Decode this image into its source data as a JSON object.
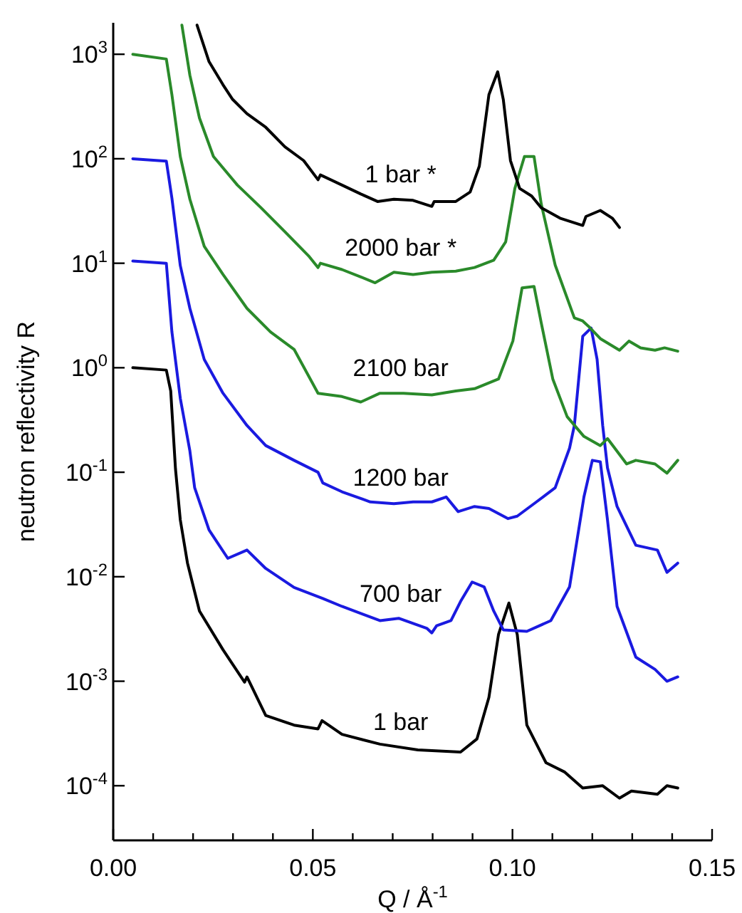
{
  "chart_data": {
    "type": "line",
    "xlabel": "Q / Å$^{-1}$",
    "ylabel": "neutron reflectivity R",
    "log": "y",
    "xlim": [
      0,
      0.15
    ],
    "ylim": [
      3e-05,
      2000
    ],
    "xticks": [
      {
        "value": 0,
        "label": "0.00"
      },
      {
        "value": 0.01,
        "label": null
      },
      {
        "value": 0.02,
        "label": null
      },
      {
        "value": 0.03,
        "label": null
      },
      {
        "value": 0.04,
        "label": null
      },
      {
        "value": 0.05,
        "label": "0.05"
      },
      {
        "value": 0.06,
        "label": null
      },
      {
        "value": 0.07,
        "label": null
      },
      {
        "value": 0.08,
        "label": null
      },
      {
        "value": 0.09,
        "label": null
      },
      {
        "value": 0.1,
        "label": "0.10"
      },
      {
        "value": 0.11,
        "label": null
      },
      {
        "value": 0.12,
        "label": null
      },
      {
        "value": 0.13,
        "label": null
      },
      {
        "value": 0.14,
        "label": null
      },
      {
        "value": 0.15,
        "label": "0.15"
      }
    ],
    "yticks": [
      {
        "value": 0.0001,
        "label": "10$^{-4}$"
      },
      {
        "value": 0.001,
        "label": "10$^{-3}$"
      },
      {
        "value": 0.01,
        "label": "10$^{-2}$"
      },
      {
        "value": 0.1,
        "label": "10$^{-1}$"
      },
      {
        "value": 1,
        "label": "10$^{0}$"
      },
      {
        "value": 10,
        "label": "10$^{1}$"
      },
      {
        "value": 100,
        "label": "10$^{2}$"
      },
      {
        "value": 1000,
        "label": "10$^{3}$"
      }
    ],
    "grid": false,
    "marker": "none",
    "line_style": "solid",
    "series": [
      {
        "name": "1 bar",
        "color": "#000000",
        "x": [
          0.0049,
          0.0133,
          0.0144,
          0.0156,
          0.0168,
          0.0186,
          0.0216,
          0.0275,
          0.0329,
          0.0335,
          0.0382,
          0.0453,
          0.0513,
          0.0523,
          0.0573,
          0.0668,
          0.0763,
          0.087,
          0.0911,
          0.0941,
          0.0965,
          0.0991,
          0.1012,
          0.1036,
          0.1084,
          0.1131,
          0.1176,
          0.1226,
          0.1268,
          0.1298,
          0.1363,
          0.1387,
          0.1414
        ],
        "values": [
          1.0,
          0.95,
          0.6,
          0.107,
          0.035,
          0.0135,
          0.0047,
          0.002,
          0.00098,
          0.0011,
          0.00047,
          0.00038,
          0.00035,
          0.00042,
          0.00031,
          0.00025,
          0.00022,
          0.00021,
          0.00028,
          0.0007,
          0.0028,
          0.0056,
          0.0028,
          0.00038,
          0.000166,
          0.000135,
          9.5e-05,
          0.0001,
          7.6e-05,
          8.9e-05,
          8.3e-05,
          0.0001,
          9.5e-05
        ]
      },
      {
        "name": "700 bar",
        "color": "#1a1ae0",
        "x": [
          0.0049,
          0.0133,
          0.0147,
          0.0168,
          0.0192,
          0.0204,
          0.024,
          0.0287,
          0.0335,
          0.0382,
          0.0453,
          0.0525,
          0.0573,
          0.0668,
          0.0715,
          0.0786,
          0.0798,
          0.081,
          0.0846,
          0.087,
          0.0899,
          0.0929,
          0.0953,
          0.0977,
          0.1036,
          0.1096,
          0.1143,
          0.1179,
          0.12,
          0.122,
          0.1238,
          0.1262,
          0.1309,
          0.1357,
          0.1387,
          0.1414
        ],
        "values": [
          10.5,
          10,
          2.2,
          0.51,
          0.16,
          0.071,
          0.028,
          0.015,
          0.018,
          0.012,
          0.0079,
          0.0062,
          0.0052,
          0.0038,
          0.004,
          0.0032,
          0.0029,
          0.0034,
          0.0038,
          0.0058,
          0.0089,
          0.008,
          0.0047,
          0.0031,
          0.003,
          0.0038,
          0.008,
          0.058,
          0.13,
          0.126,
          0.035,
          0.0052,
          0.0017,
          0.0013,
          0.001,
          0.0011
        ]
      },
      {
        "name": "1200 bar",
        "color": "#1a1ae0",
        "x": [
          0.0049,
          0.0133,
          0.0147,
          0.0168,
          0.0192,
          0.0228,
          0.0275,
          0.0335,
          0.0382,
          0.0453,
          0.0513,
          0.0525,
          0.0573,
          0.0644,
          0.0703,
          0.0751,
          0.0798,
          0.0834,
          0.0864,
          0.0905,
          0.0941,
          0.0989,
          0.1012,
          0.106,
          0.1107,
          0.1143,
          0.1155,
          0.1176,
          0.1197,
          0.1212,
          0.1226,
          0.1238,
          0.1262,
          0.1309,
          0.1363,
          0.1387,
          0.1414
        ],
        "values": [
          100,
          95,
          42,
          9.5,
          3.7,
          1.2,
          0.57,
          0.28,
          0.18,
          0.13,
          0.1,
          0.079,
          0.065,
          0.052,
          0.05,
          0.052,
          0.052,
          0.058,
          0.042,
          0.047,
          0.045,
          0.036,
          0.038,
          0.052,
          0.071,
          0.17,
          0.28,
          2.0,
          2.4,
          1.2,
          0.28,
          0.11,
          0.047,
          0.02,
          0.018,
          0.011,
          0.0135
        ]
      },
      {
        "name": "2100 bar",
        "color": "#2a8a2a",
        "x": [
          0.0049,
          0.0133,
          0.0147,
          0.0168,
          0.0192,
          0.0228,
          0.0275,
          0.0335,
          0.0394,
          0.0453,
          0.0513,
          0.0573,
          0.062,
          0.0668,
          0.0727,
          0.0798,
          0.0858,
          0.0905,
          0.0965,
          0.1001,
          0.1024,
          0.1054,
          0.1072,
          0.1101,
          0.1137,
          0.1179,
          0.122,
          0.1238,
          0.1286,
          0.1309,
          0.1357,
          0.1387,
          0.1414
        ],
        "values": [
          1000,
          900,
          410,
          105,
          41,
          14.5,
          7.8,
          3.7,
          2.2,
          1.5,
          0.57,
          0.53,
          0.47,
          0.57,
          0.57,
          0.55,
          0.6,
          0.63,
          0.78,
          1.8,
          5.8,
          6.0,
          2.7,
          0.78,
          0.34,
          0.22,
          0.18,
          0.21,
          0.12,
          0.13,
          0.12,
          0.098,
          0.13
        ]
      },
      {
        "name": "2000 bar *",
        "color": "#2a8a2a",
        "x": [
          0.0172,
          0.0192,
          0.0216,
          0.0251,
          0.0311,
          0.037,
          0.043,
          0.0489,
          0.0513,
          0.0519,
          0.0573,
          0.062,
          0.0656,
          0.0703,
          0.0751,
          0.0798,
          0.0858,
          0.0905,
          0.0953,
          0.0983,
          0.1006,
          0.103,
          0.1054,
          0.1072,
          0.1107,
          0.1155,
          0.1176,
          0.119,
          0.122,
          0.1268,
          0.1292,
          0.1321,
          0.1357,
          0.1381,
          0.1414
        ],
        "values": [
          1900,
          630,
          245,
          105,
          56,
          34,
          20,
          11.8,
          9.1,
          10,
          8.7,
          7.4,
          6.5,
          8.2,
          7.8,
          8.2,
          8.4,
          9.1,
          10.7,
          16,
          52,
          105,
          105,
          37,
          9.6,
          3.0,
          2.8,
          2.5,
          1.9,
          1.47,
          1.8,
          1.55,
          1.47,
          1.55,
          1.44
        ]
      },
      {
        "name": "1 bar *",
        "color": "#000000",
        "x": [
          0.021,
          0.024,
          0.0275,
          0.0299,
          0.0335,
          0.0382,
          0.043,
          0.0477,
          0.0513,
          0.0519,
          0.0573,
          0.062,
          0.0662,
          0.0703,
          0.0751,
          0.0798,
          0.0804,
          0.0858,
          0.0894,
          0.0917,
          0.0941,
          0.0963,
          0.0977,
          0.0995,
          0.1018,
          0.1048,
          0.1072,
          0.1119,
          0.1176,
          0.1184,
          0.122,
          0.125,
          0.1268
        ],
        "values": [
          1900,
          850,
          510,
          370,
          270,
          200,
          130,
          96,
          63,
          70,
          56,
          46,
          39,
          41,
          40,
          35,
          39,
          39,
          48,
          85,
          410,
          680,
          370,
          96,
          52,
          44,
          34,
          27,
          23,
          28,
          32,
          27,
          22
        ]
      }
    ]
  }
}
